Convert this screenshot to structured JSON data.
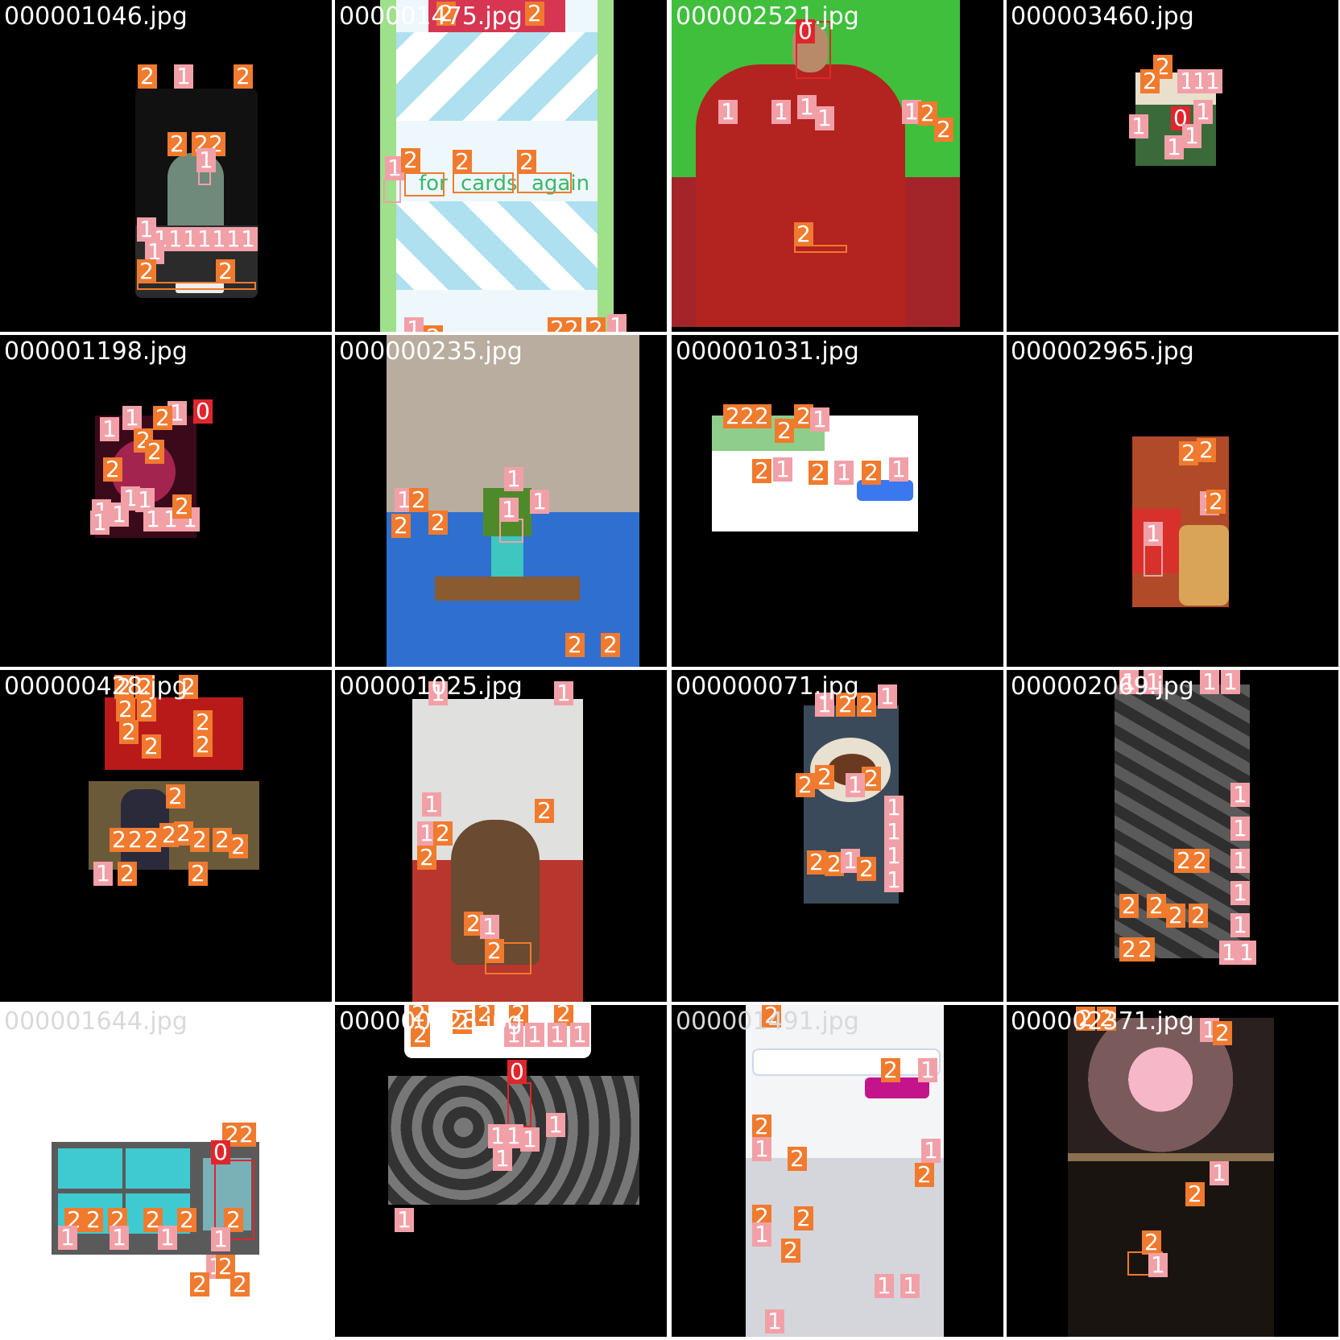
{
  "grid": {
    "tiles": [
      {
        "file": "000001046.jpg",
        "labels": [
          "2",
          "1",
          "2",
          "2",
          "2",
          "2",
          "1",
          "1",
          "1",
          "1",
          "1",
          "1",
          "1",
          "1",
          "1",
          "1",
          "2",
          "2"
        ]
      },
      {
        "file": "000001475.jpg",
        "labels": [
          "2",
          "2",
          "1",
          "2",
          "2",
          "2",
          "1",
          "2",
          "2",
          "2",
          "2",
          "1"
        ],
        "words": [
          "for",
          "cards",
          "again"
        ]
      },
      {
        "file": "000002521.jpg",
        "labels": [
          "0",
          "1",
          "1",
          "1",
          "1",
          "1",
          "2",
          "2",
          "2"
        ]
      },
      {
        "file": "000003460.jpg",
        "labels": [
          "2",
          "2",
          "1",
          "1",
          "1",
          "1",
          "0",
          "1",
          "1",
          "1"
        ]
      },
      {
        "file": "000001198.jpg",
        "labels": [
          "0",
          "1",
          "1",
          "2",
          "2",
          "1",
          "2",
          "2",
          "1",
          "1",
          "1",
          "1",
          "1",
          "1",
          "2",
          "1",
          "1"
        ]
      },
      {
        "file": "000000235.jpg",
        "labels": [
          "1",
          "1",
          "2",
          "1",
          "2",
          "2",
          "1",
          "2",
          "2"
        ]
      },
      {
        "file": "000001031.jpg",
        "labels": [
          "2",
          "2",
          "2",
          "2",
          "2",
          "1",
          "2",
          "1",
          "2",
          "1",
          "2",
          "1"
        ]
      },
      {
        "file": "000002965.jpg",
        "labels": [
          "2",
          "2",
          "1",
          "2",
          "1"
        ]
      },
      {
        "file": "000000428.jpg",
        "labels": [
          "2",
          "2",
          "2",
          "2",
          "2",
          "2",
          "2",
          "2",
          "2",
          "2",
          "2",
          "2",
          "2",
          "2",
          "2",
          "2",
          "2",
          "2",
          "1",
          "2",
          "2"
        ]
      },
      {
        "file": "000001025.jpg",
        "labels": [
          "1",
          "1",
          "1",
          "1",
          "2",
          "2",
          "2",
          "2",
          "1",
          "2"
        ]
      },
      {
        "file": "000000071.jpg",
        "labels": [
          "1",
          "2",
          "2",
          "1",
          "2",
          "2",
          "2",
          "1",
          "1",
          "1",
          "1",
          "1",
          "2",
          "2",
          "1",
          "2"
        ]
      },
      {
        "file": "000002069.jpg",
        "labels": [
          "1",
          "1",
          "1",
          "1",
          "1",
          "2",
          "2",
          "1",
          "2",
          "2",
          "2",
          "2",
          "1",
          "1",
          "2",
          "2",
          "1",
          "1",
          "1"
        ]
      },
      {
        "file": "000001644.jpg",
        "labels": [
          "2",
          "2",
          "0",
          "2",
          "2",
          "2",
          "2",
          "2",
          "2",
          "1",
          "1",
          "1",
          "1",
          "1",
          "2",
          "2",
          "2"
        ]
      },
      {
        "file": "000000128.jpg",
        "labels": [
          "2",
          "2",
          "2",
          "2",
          "2",
          "2",
          "1",
          "1",
          "1",
          "1",
          "0",
          "1",
          "1",
          "1",
          "1",
          "1",
          "1"
        ]
      },
      {
        "file": "000001491.jpg",
        "labels": [
          "2",
          "2",
          "1",
          "2",
          "1",
          "2",
          "1",
          "2",
          "2",
          "2",
          "1",
          "1",
          "2",
          "1",
          "1"
        ]
      },
      {
        "file": "000002371.jpg",
        "labels": [
          "2",
          "2",
          "1",
          "2",
          "1",
          "2",
          "2",
          "1"
        ]
      }
    ]
  },
  "legend_colors": {
    "class_0": "#e0262c",
    "class_1": "#f2a0a8",
    "class_2": "#f07a2e"
  }
}
